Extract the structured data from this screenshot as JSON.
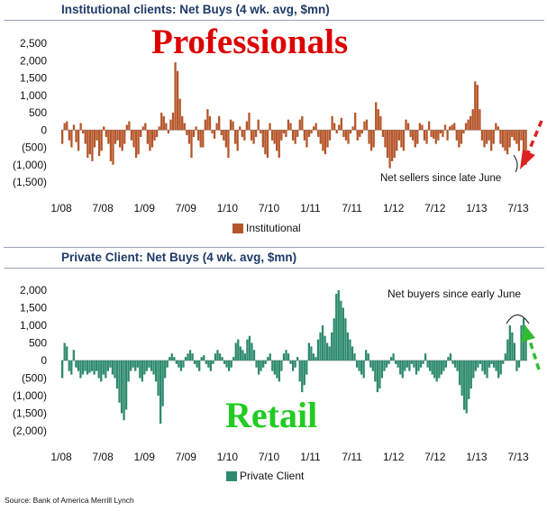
{
  "charts": {
    "institutional": {
      "title": "Institutional clients: Net Buys (4 wk. avg, $mn)",
      "overlay_label": "Professionals",
      "overlay_color": "#dd0000",
      "annotation": "Net sellers since late June",
      "arrow_color": "#dd2222"
    },
    "private": {
      "title": "Private Client: Net Buys (4 wk. avg, $mn)",
      "overlay_label": "Retail",
      "overlay_color": "#22cc22",
      "annotation": "Net buyers since early  June",
      "arrow_color": "#33bb33"
    }
  },
  "source": "Source: Bank of America Merrill Lynch",
  "chart_data": [
    {
      "type": "bar",
      "title": "Institutional clients: Net Buys (4 wk. avg, $mn)",
      "color": "#b5562a",
      "ylim": [
        -1500,
        2500
      ],
      "yticks": [
        2500,
        2000,
        1500,
        1000,
        500,
        0,
        -500,
        -1000,
        -1500
      ],
      "ytick_labels": [
        "2,500",
        "2,000",
        "1,500",
        "1,000",
        "500",
        "0",
        "(500)",
        "(1,000)",
        "(1,500)"
      ],
      "xtick_labels": [
        "1/08",
        "7/08",
        "1/09",
        "7/09",
        "1/10",
        "7/10",
        "1/11",
        "7/11",
        "1/12",
        "7/12",
        "1/13",
        "7/13"
      ],
      "legend": [
        "Institutional"
      ],
      "series": [
        {
          "name": "Institutional",
          "values": [
            -400,
            200,
            250,
            -300,
            -500,
            150,
            -350,
            -600,
            200,
            -100,
            -400,
            -800,
            -700,
            -900,
            -500,
            -300,
            -750,
            -600,
            100,
            -200,
            -400,
            -900,
            -1000,
            -400,
            -300,
            -500,
            -600,
            -400,
            150,
            250,
            -300,
            -500,
            -800,
            -700,
            -200,
            100,
            200,
            -400,
            -600,
            -500,
            -300,
            -200,
            100,
            500,
            400,
            200,
            -100,
            300,
            500,
            1950,
            1700,
            900,
            400,
            200,
            -150,
            -400,
            -800,
            -200,
            100,
            -300,
            -500,
            -500,
            300,
            600,
            400,
            -100,
            -250,
            200,
            400,
            -150,
            -300,
            -500,
            -800,
            300,
            250,
            -400,
            -600,
            100,
            -200,
            -300,
            250,
            500,
            -300,
            -400,
            -200,
            300,
            -100,
            -500,
            -700,
            -800,
            200,
            -300,
            -400,
            -600,
            -800,
            -300,
            -100,
            -200,
            300,
            200,
            -300,
            -400,
            -200,
            300,
            400,
            -300,
            -500,
            -200,
            -100,
            100,
            200,
            -200,
            -400,
            -600,
            -700,
            -500,
            -300,
            400,
            200,
            -100,
            150,
            350,
            -200,
            -300,
            -400,
            -100,
            100,
            500,
            -300,
            -200,
            -100,
            250,
            300,
            -400,
            -600,
            -500,
            800,
            600,
            400,
            -200,
            -500,
            -800,
            -1100,
            -900,
            -800,
            -600,
            -300,
            -500,
            -600,
            300,
            200,
            -200,
            -300,
            -500,
            -400,
            200,
            150,
            -300,
            -400,
            250,
            -200,
            -250,
            -400,
            -300,
            -100,
            -200,
            150,
            -300,
            100,
            150,
            200,
            -300,
            -500,
            -400,
            -100,
            200,
            300,
            400,
            600,
            1400,
            1300,
            600,
            -300,
            -500,
            -400,
            -300,
            -600,
            -400,
            200,
            100,
            -400,
            -500,
            -600,
            -700,
            -500,
            -200,
            -300,
            -400,
            -600,
            -300,
            -800,
            -1000
          ]
        }
      ]
    },
    {
      "type": "bar",
      "title": "Private Client: Net Buys (4 wk. avg, $mn)",
      "color": "#2d8a6e",
      "ylim": [
        -2000,
        2000
      ],
      "yticks": [
        2000,
        1500,
        1000,
        500,
        0,
        -500,
        -1000,
        -1500,
        -2000
      ],
      "ytick_labels": [
        "2,000",
        "1,500",
        "1,000",
        "500",
        "0",
        "(500)",
        "(1,000)",
        "(1,500)",
        "(2,000)"
      ],
      "xtick_labels": [
        "1/08",
        "7/08",
        "1/09",
        "7/09",
        "1/10",
        "7/10",
        "1/11",
        "7/11",
        "1/12",
        "7/12",
        "1/13",
        "7/13"
      ],
      "legend": [
        "Private Client"
      ],
      "series": [
        {
          "name": "Private Client",
          "values": [
            -500,
            500,
            400,
            -300,
            -400,
            300,
            -200,
            -300,
            -500,
            -400,
            -300,
            -400,
            -350,
            -300,
            -400,
            -300,
            -500,
            -600,
            -400,
            -500,
            -300,
            -200,
            -400,
            -500,
            -800,
            -1200,
            -1500,
            -1700,
            -1400,
            -600,
            -300,
            -200,
            -300,
            -200,
            -500,
            -600,
            -400,
            -300,
            -200,
            -300,
            -400,
            -600,
            -1000,
            -1800,
            -1300,
            -500,
            -200,
            100,
            200,
            100,
            -100,
            -200,
            -300,
            -200,
            100,
            200,
            300,
            200,
            -100,
            -200,
            -300,
            100,
            150,
            -100,
            -200,
            -300,
            -100,
            200,
            300,
            200,
            100,
            -100,
            -200,
            -300,
            -200,
            100,
            500,
            600,
            400,
            300,
            200,
            600,
            700,
            500,
            300,
            -200,
            -400,
            -300,
            -200,
            -100,
            100,
            200,
            -300,
            -400,
            -500,
            -600,
            -300,
            200,
            300,
            200,
            -100,
            -300,
            -200,
            100,
            -600,
            -900,
            -700,
            -400,
            500,
            400,
            200,
            100,
            600,
            800,
            1000,
            700,
            500,
            400,
            800,
            1200,
            1900,
            2000,
            1700,
            1500,
            1200,
            800,
            600,
            400,
            200,
            -200,
            -300,
            -400,
            -500,
            300,
            200,
            -200,
            -300,
            -600,
            -900,
            -800,
            -500,
            -300,
            -200,
            -100,
            100,
            200,
            -100,
            -200,
            -400,
            -500,
            -300,
            -200,
            -300,
            -100,
            -200,
            -400,
            -300,
            -200,
            -100,
            200,
            -200,
            -300,
            -400,
            -500,
            -600,
            -500,
            -400,
            -300,
            -200,
            100,
            200,
            -100,
            -200,
            -300,
            -700,
            -1000,
            -1400,
            -1500,
            -1100,
            -800,
            -500,
            -300,
            -200,
            -100,
            -300,
            -400,
            -500,
            -200,
            -100,
            -200,
            -300,
            -500,
            -400,
            -100,
            200,
            600,
            1000,
            800,
            500,
            -300,
            -200,
            1000,
            1200,
            800
          ]
        }
      ]
    }
  ]
}
